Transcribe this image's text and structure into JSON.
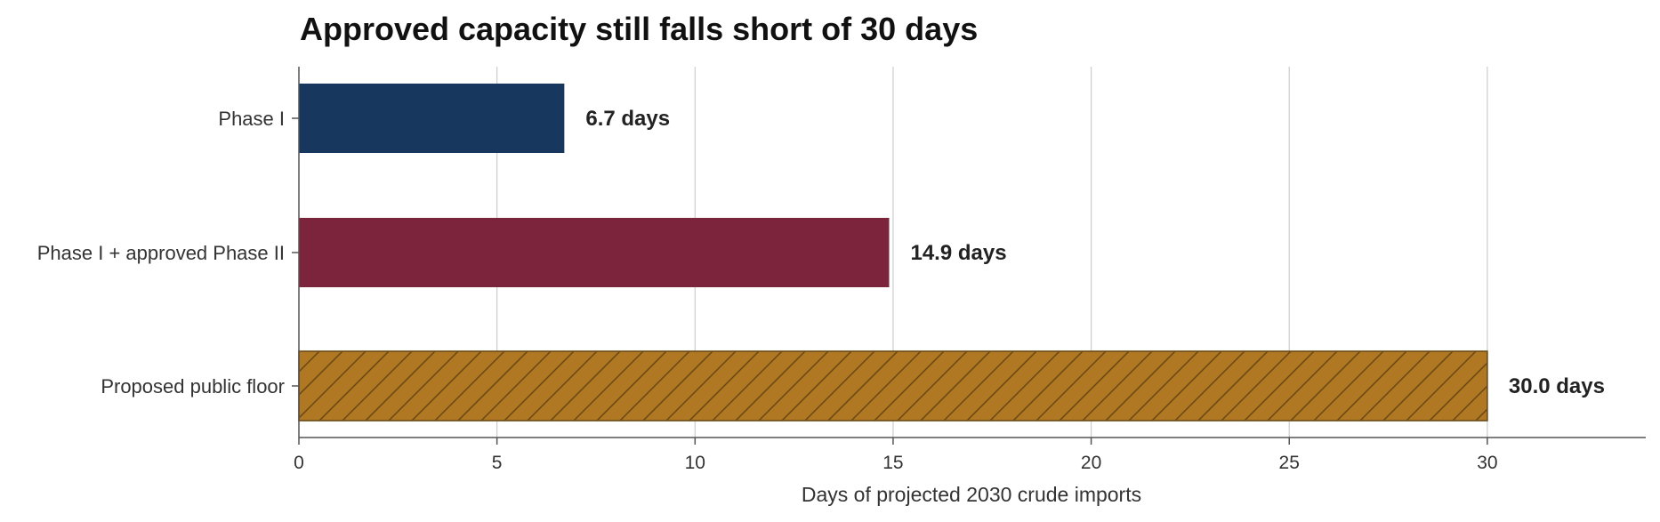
{
  "chart_data": {
    "type": "bar",
    "orientation": "horizontal",
    "title": "Approved capacity still falls short of 30 days",
    "xlabel": "Days of projected 2030 crude imports",
    "ylabel": "",
    "categories": [
      "Phase I",
      "Phase I + approved Phase II",
      "Proposed public floor"
    ],
    "values": [
      6.7,
      14.9,
      30.0
    ],
    "data_labels": [
      "6.7 days",
      "14.9 days",
      "30.0 days"
    ],
    "colors": [
      "#17375e",
      "#7b243b",
      "#b07822"
    ],
    "hatched": [
      false,
      false,
      true
    ],
    "hatch_color": "#6b4a16",
    "xlim": [
      0,
      34
    ],
    "xticks": [
      0,
      5,
      10,
      15,
      20,
      25,
      30
    ],
    "xtick_labels": [
      "0",
      "5",
      "10",
      "15",
      "20",
      "25",
      "30"
    ],
    "grid": "vertical",
    "legend": "none"
  }
}
